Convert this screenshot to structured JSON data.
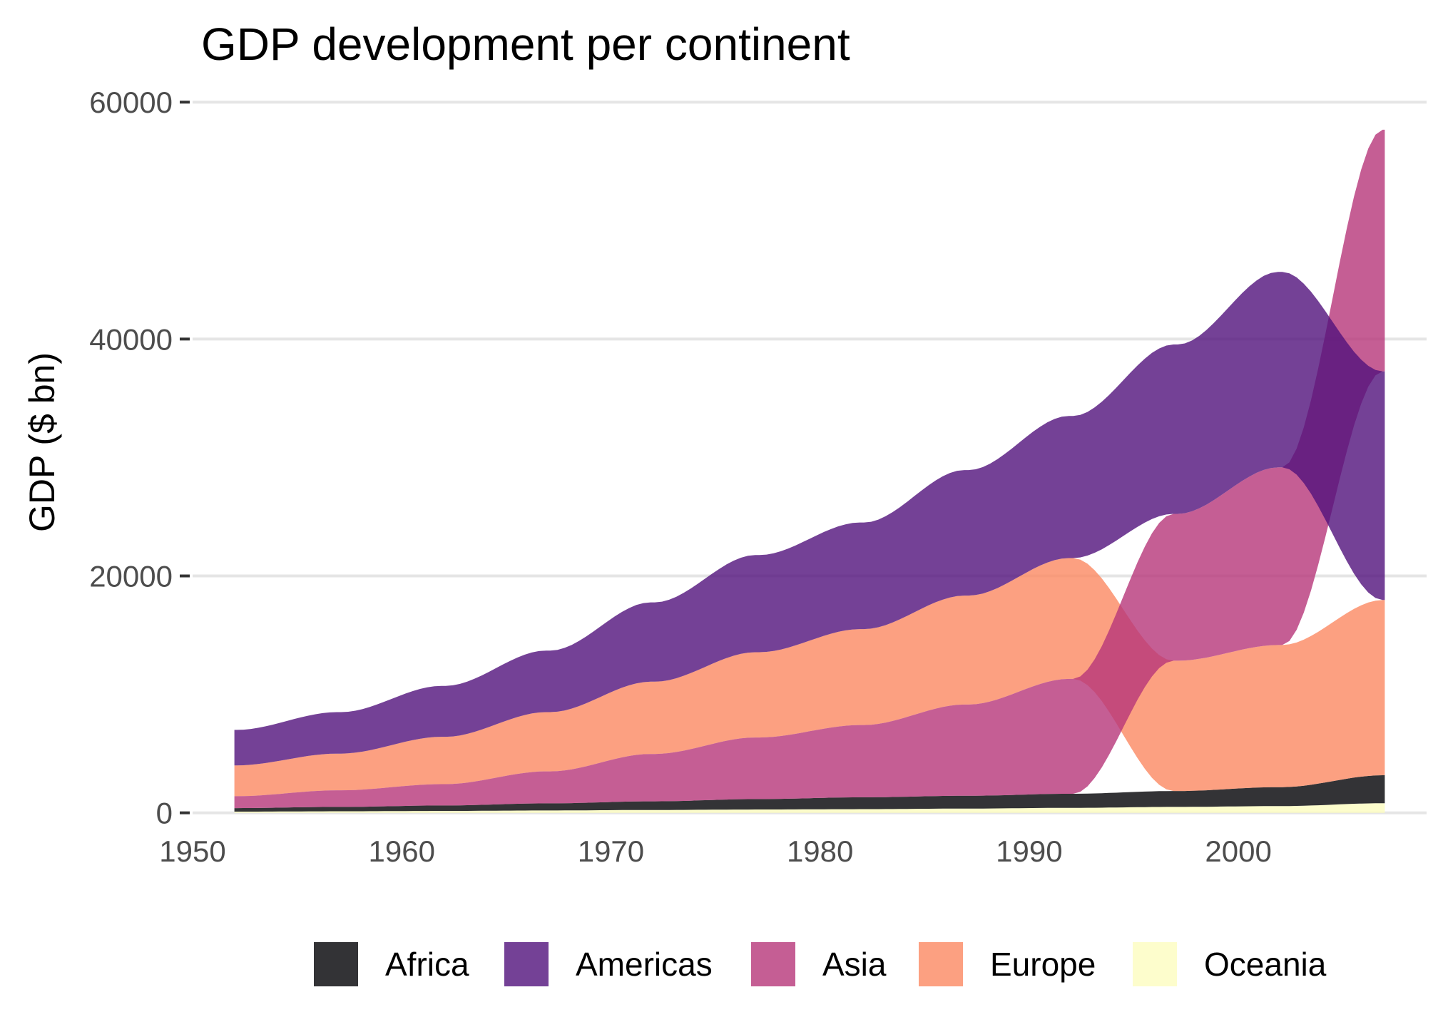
{
  "chart_data": {
    "type": "area",
    "subtype": "ranked-bump-area (bumped stream, ordered by value per year)",
    "title": "GDP development per continent",
    "xlabel": "",
    "ylabel": "GDP ($ bn)",
    "x": [
      1952,
      1957,
      1962,
      1967,
      1972,
      1977,
      1982,
      1987,
      1992,
      1997,
      2002,
      2007
    ],
    "xlim": [
      1950,
      2009
    ],
    "xticks": [
      1950,
      1960,
      1970,
      1980,
      1990,
      2000
    ],
    "ylim": [
      -500,
      62000
    ],
    "yticks": [
      0,
      20000,
      40000,
      60000
    ],
    "grid": "horizontal major gridlines",
    "legend_position": "bottom",
    "series": [
      {
        "name": "Africa",
        "color": "#000004",
        "values": [
          300,
          370,
          460,
          600,
          730,
          880,
          1000,
          1080,
          1190,
          1340,
          1600,
          2360
        ]
      },
      {
        "name": "Americas",
        "color": "#51127C",
        "values": [
          3000,
          3500,
          4300,
          5200,
          6700,
          8200,
          9000,
          10600,
          12000,
          14300,
          16500,
          19300
        ]
      },
      {
        "name": "Asia",
        "color": "#B63679",
        "values": [
          1000,
          1400,
          1800,
          2700,
          4000,
          5200,
          6100,
          7700,
          9700,
          12400,
          15000,
          20400
        ]
      },
      {
        "name": "Europe",
        "color": "#FB8861",
        "values": [
          2600,
          3100,
          4000,
          5000,
          6100,
          7200,
          8100,
          9200,
          10200,
          11000,
          12000,
          14800
        ]
      },
      {
        "name": "Oceania",
        "color": "#FCFDBF",
        "values": [
          100,
          130,
          160,
          200,
          240,
          280,
          310,
          360,
          420,
          500,
          570,
          810
        ]
      }
    ]
  }
}
